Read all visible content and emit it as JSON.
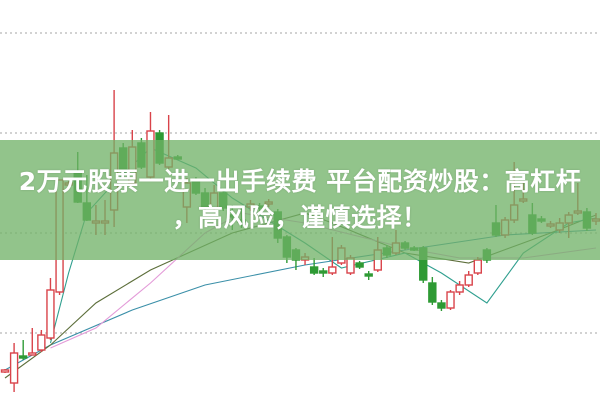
{
  "banner": {
    "line1": "2万元股票一进一出手续费 平台配资炒股：高杠杆",
    "line2": "，高风险，谨慎选择！"
  },
  "colors": {
    "up": "#d9434a",
    "down": "#2e9a34",
    "grid": "#b8b8b8",
    "banner": "#70b266"
  },
  "chart_data": {
    "type": "candlestick",
    "title": "",
    "xlabel": "",
    "ylabel": "",
    "ylim": [
      0.0,
      4.33
    ],
    "grid": true,
    "gridlines": [
      1,
      2,
      3,
      4
    ],
    "candles": [
      [
        0.62,
        0.64,
        0.6,
        0.63
      ],
      [
        0.5,
        0.9,
        0.41,
        0.8
      ],
      [
        0.77,
        0.93,
        0.73,
        0.76
      ],
      [
        0.79,
        1.05,
        0.78,
        0.8
      ],
      [
        0.83,
        1.03,
        0.81,
        0.98
      ],
      [
        0.95,
        1.55,
        0.93,
        1.43
      ],
      [
        1.41,
        2.53,
        1.38,
        2.53
      ],
      [
        2.49,
        2.52,
        2.47,
        2.5
      ],
      [
        2.6,
        2.81,
        2.3,
        2.31
      ],
      [
        2.3,
        2.58,
        2.12,
        2.13
      ],
      [
        2.11,
        2.28,
        1.98,
        2.12
      ],
      [
        2.11,
        2.33,
        1.98,
        2.12
      ],
      [
        2.23,
        3.43,
        2.06,
        2.8
      ],
      [
        2.85,
        2.9,
        2.6,
        2.63
      ],
      [
        2.5,
        3.03,
        2.48,
        2.86
      ],
      [
        2.9,
        2.95,
        2.64,
        2.66
      ],
      [
        2.56,
        3.21,
        2.52,
        3.02
      ],
      [
        3.0,
        3.03,
        2.68,
        2.7
      ],
      [
        2.66,
        3.18,
        2.64,
        2.75
      ],
      [
        2.76,
        2.78,
        2.73,
        2.75
      ],
      [
        2.26,
        2.55,
        2.1,
        2.5
      ],
      [
        2.53,
        2.56,
        2.38,
        2.4
      ],
      [
        2.4,
        2.45,
        2.2,
        2.25
      ],
      [
        2.25,
        2.48,
        2.22,
        2.4
      ],
      [
        2.4,
        2.44,
        2.22,
        2.25
      ],
      [
        2.18,
        2.28,
        2.03,
        2.17
      ],
      [
        2.13,
        2.25,
        2.05,
        2.12
      ],
      [
        2.26,
        2.33,
        2.22,
        2.29
      ],
      [
        2.27,
        2.3,
        2.22,
        2.26
      ],
      [
        2.3,
        2.34,
        2.26,
        2.31
      ],
      [
        2.21,
        2.24,
        1.9,
        1.95
      ],
      [
        1.96,
        1.98,
        1.7,
        1.76
      ],
      [
        1.83,
        1.85,
        1.63,
        1.73
      ],
      [
        1.73,
        1.8,
        1.68,
        1.76
      ],
      [
        1.66,
        1.75,
        1.58,
        1.6
      ],
      [
        1.62,
        1.65,
        1.56,
        1.6
      ],
      [
        1.6,
        1.96,
        1.58,
        1.66
      ],
      [
        1.7,
        1.88,
        1.68,
        1.85
      ],
      [
        1.6,
        1.78,
        1.58,
        1.75
      ],
      [
        1.7,
        1.72,
        1.64,
        1.66
      ],
      [
        1.59,
        1.62,
        1.53,
        1.57
      ],
      [
        1.63,
        1.96,
        1.61,
        1.83
      ],
      [
        1.85,
        1.88,
        1.75,
        1.78
      ],
      [
        1.8,
        2.03,
        1.78,
        1.9
      ],
      [
        1.9,
        1.92,
        1.83,
        1.85
      ],
      [
        1.85,
        1.87,
        1.82,
        1.84
      ],
      [
        1.85,
        1.87,
        1.5,
        1.53
      ],
      [
        1.5,
        1.56,
        1.28,
        1.31
      ],
      [
        1.3,
        1.33,
        1.22,
        1.25
      ],
      [
        1.25,
        1.43,
        1.23,
        1.41
      ],
      [
        1.41,
        1.52,
        1.38,
        1.48
      ],
      [
        1.48,
        1.62,
        1.46,
        1.58
      ],
      [
        1.6,
        1.76,
        1.58,
        1.73
      ],
      [
        1.83,
        1.85,
        1.7,
        1.73
      ],
      [
        2.1,
        2.28,
        1.96,
        1.98
      ],
      [
        1.98,
        2.16,
        1.95,
        2.13
      ],
      [
        2.13,
        2.71,
        2.1,
        2.28
      ],
      [
        2.33,
        2.5,
        2.3,
        2.34
      ],
      [
        2.18,
        2.3,
        1.98,
        2.0
      ],
      [
        2.14,
        2.17,
        2.1,
        2.12
      ],
      [
        2.08,
        2.12,
        2.05,
        2.09
      ],
      [
        2.03,
        2.15,
        2.0,
        2.1
      ],
      [
        2.1,
        2.21,
        1.95,
        2.18
      ],
      [
        2.2,
        2.5,
        2.18,
        2.22
      ],
      [
        2.21,
        2.25,
        2.02,
        2.05
      ],
      [
        2.12,
        2.2,
        2.08,
        2.14
      ]
    ],
    "moving_averages": [
      {
        "color": "#3a8fa8",
        "points": [
          [
            0,
            0.63
          ],
          [
            5,
            0.88
          ],
          [
            14,
            1.23
          ],
          [
            22,
            1.48
          ],
          [
            33,
            1.68
          ],
          [
            44,
            1.83
          ],
          [
            55,
            1.98
          ],
          [
            65,
            2.03
          ]
        ]
      },
      {
        "color": "#5c6e3a",
        "points": [
          [
            0,
            0.55
          ],
          [
            5,
            0.88
          ],
          [
            10,
            1.3
          ],
          [
            16,
            1.63
          ],
          [
            25,
            2.0
          ],
          [
            33,
            2.2
          ],
          [
            36,
            2.1
          ],
          [
            44,
            1.8
          ],
          [
            51,
            1.7
          ],
          [
            60,
            2.0
          ],
          [
            65,
            2.18
          ]
        ]
      },
      {
        "color": "#e39ad8",
        "points": [
          [
            5,
            0.85
          ],
          [
            10,
            1.05
          ],
          [
            16,
            1.5
          ],
          [
            22,
            2.0
          ],
          [
            26,
            2.2
          ],
          [
            33,
            2.1
          ],
          [
            44,
            1.85
          ],
          [
            50,
            1.75
          ],
          [
            57,
            1.75
          ],
          [
            65,
            1.85
          ]
        ]
      },
      {
        "color": "#2f9f8f",
        "points": [
          [
            5,
            0.9
          ],
          [
            7,
            1.6
          ],
          [
            9,
            2.2
          ],
          [
            12,
            2.5
          ],
          [
            16,
            2.85
          ],
          [
            21,
            2.65
          ],
          [
            25,
            2.35
          ],
          [
            33,
            1.9
          ],
          [
            37,
            1.65
          ],
          [
            44,
            1.8
          ],
          [
            48,
            1.6
          ],
          [
            53,
            1.3
          ],
          [
            57,
            1.8
          ],
          [
            62,
            2.1
          ],
          [
            65,
            2.15
          ]
        ]
      }
    ]
  }
}
